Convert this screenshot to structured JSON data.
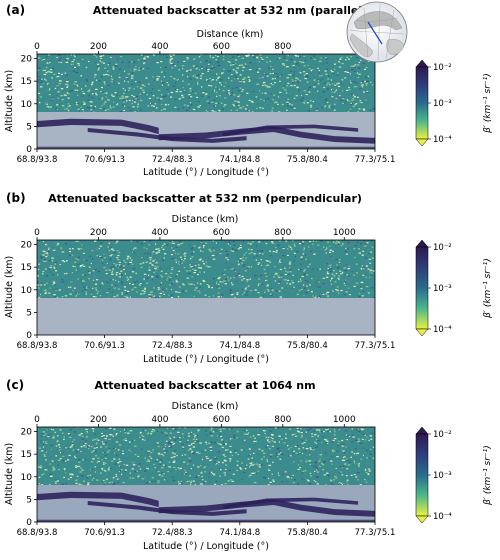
{
  "chart_data": [
    {
      "type": "heatmap",
      "panel_label": "(a)",
      "title": "Attenuated backscatter at 532 nm (parallel)",
      "top_axis": {
        "label": "Distance (km)",
        "ticks": [
          0,
          200,
          400,
          600,
          800
        ]
      },
      "ylabel": "Altitude (km)",
      "ylim": [
        0,
        21
      ],
      "y_ticks": [
        0,
        5,
        10,
        15,
        20
      ],
      "xlabel": "Latitude (°) / Longitude (°)",
      "x_ticks": [
        "68.8/93.8",
        "70.6/91.3",
        "72.4/88.3",
        "74.1/84.8",
        "75.8/80.4",
        "77.3/75.1"
      ],
      "colorbar": {
        "label": "β′ (km⁻¹ sr⁻¹)",
        "scale": "log",
        "min_label": "10⁻⁴",
        "mid_label": "10⁻³",
        "max_label": "10⁻²",
        "colormap": "viridis reversed",
        "extend": "both"
      },
      "inset_map": true,
      "layers": [
        {
          "name": "noisy upper atmosphere",
          "alt_min": 8,
          "alt_max": 20,
          "level": "high noise"
        },
        {
          "name": "low cloud layer",
          "alt_min": 0.5,
          "alt_max": 6,
          "level": "1e-2"
        }
      ]
    },
    {
      "type": "heatmap",
      "panel_label": "(b)",
      "title": "Attenuated backscatter at 532 nm (perpendicular)",
      "top_axis": {
        "label": "Distance (km)",
        "ticks": [
          0,
          200,
          400,
          600,
          800,
          1000
        ]
      },
      "ylabel": "Altitude (km)",
      "ylim": [
        0,
        21
      ],
      "y_ticks": [
        0,
        5,
        10,
        15,
        20
      ],
      "xlabel": "Latitude (°) / Longitude (°)",
      "x_ticks": [
        "68.8/93.8",
        "70.6/91.3",
        "72.4/88.3",
        "74.1/84.8",
        "75.8/80.4",
        "77.3/75.1"
      ],
      "colorbar": {
        "label": "β′ (km⁻¹ sr⁻¹)",
        "scale": "log",
        "min_label": "10⁻⁴",
        "mid_label": "10⁻³",
        "max_label": "10⁻²",
        "colormap": "viridis reversed",
        "extend": "both"
      },
      "layers": [
        {
          "name": "noisy upper atmosphere",
          "alt_min": 8,
          "alt_max": 20,
          "level": "high noise"
        }
      ]
    },
    {
      "type": "heatmap",
      "panel_label": "(c)",
      "title": "Attenuated backscatter at 1064 nm",
      "top_axis": {
        "label": "Distance (km)",
        "ticks": [
          0,
          200,
          400,
          600,
          800,
          1000
        ]
      },
      "ylabel": "Altitude (km)",
      "ylim": [
        0,
        21
      ],
      "y_ticks": [
        0,
        5,
        10,
        15,
        20
      ],
      "xlabel": "Latitude (°) / Longitude (°)",
      "x_ticks": [
        "68.8/93.8",
        "70.6/91.3",
        "72.4/88.3",
        "74.1/84.8",
        "75.8/80.4",
        "77.3/75.1"
      ],
      "colorbar": {
        "label": "β′ (km⁻¹ sr⁻¹)",
        "scale": "log",
        "min_label": "10⁻⁴",
        "mid_label": "10⁻³",
        "max_label": "10⁻²",
        "colormap": "viridis reversed",
        "extend": "both"
      },
      "layers": [
        {
          "name": "noisy upper atmosphere",
          "alt_min": 8,
          "alt_max": 20,
          "level": "high noise"
        },
        {
          "name": "low cloud layer",
          "alt_min": 0.5,
          "alt_max": 6,
          "level": "1e-2"
        }
      ]
    }
  ],
  "colors": {
    "noise_dark": "#3e5a8a",
    "noise_teal": "#3b8c8c",
    "noise_green": "#8fc98a",
    "lower_gray": "#a8b4c4",
    "cloud": "#2a1f5a",
    "cbar_top": "#2d1a4e",
    "cbar_mid": "#2a6c8c",
    "cbar_low": "#4cb78a",
    "cbar_bottom": "#e9f045"
  }
}
